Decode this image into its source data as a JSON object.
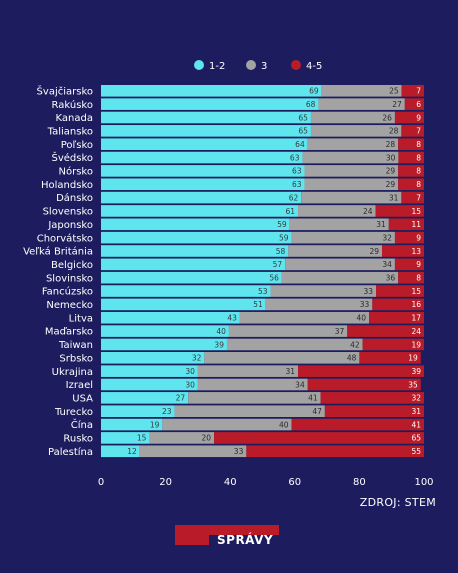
{
  "source_text": "ZDROJ: STEM",
  "logo_text": "SPRÁVY",
  "colors": {
    "background": "#1d1c5f",
    "s1": "#5ee5ee",
    "s2": "#a3a3a3",
    "s3": "#b91c28",
    "logo_red": "#b91c28"
  },
  "chart_data": {
    "type": "bar",
    "orientation": "horizontal",
    "stacked": true,
    "title": "",
    "xlabel": "",
    "ylabel": "",
    "xlim": [
      0,
      100
    ],
    "xticks": [
      "0",
      "20",
      "40",
      "60",
      "80",
      "100"
    ],
    "legend_position": "top",
    "categories": [
      "Švajčiarsko",
      "Rakúsko",
      "Kanada",
      "Taliansko",
      "Poľsko",
      "Švédsko",
      "Nórsko",
      "Holandsko",
      "Dánsko",
      "Slovensko",
      "Japonsko",
      "Chorvátsko",
      "Veľká Británia",
      "Belgicko",
      "Slovinsko",
      "Fancúzsko",
      "Nemecko",
      "Litva",
      "Maďarsko",
      "Taiwan",
      "Srbsko",
      "Ukrajina",
      "Izrael",
      "USA",
      "Turecko",
      "Čína",
      "Rusko",
      "Palestína"
    ],
    "series": [
      {
        "name": "1-2",
        "values": [
          69,
          68,
          65,
          65,
          64,
          63,
          63,
          63,
          62,
          61,
          59,
          59,
          58,
          57,
          56,
          53,
          51,
          43,
          40,
          39,
          32,
          30,
          30,
          27,
          23,
          19,
          15,
          12
        ]
      },
      {
        "name": "3",
        "values": [
          25,
          27,
          26,
          28,
          28,
          30,
          29,
          29,
          31,
          24,
          31,
          32,
          29,
          34,
          36,
          33,
          33,
          40,
          37,
          42,
          48,
          31,
          34,
          41,
          47,
          40,
          20,
          33
        ]
      },
      {
        "name": "4-5",
        "values": [
          7,
          6,
          9,
          7,
          8,
          8,
          8,
          8,
          7,
          15,
          11,
          9,
          13,
          9,
          8,
          15,
          16,
          17,
          24,
          19,
          19,
          39,
          35,
          32,
          31,
          41,
          65,
          55
        ]
      }
    ]
  }
}
